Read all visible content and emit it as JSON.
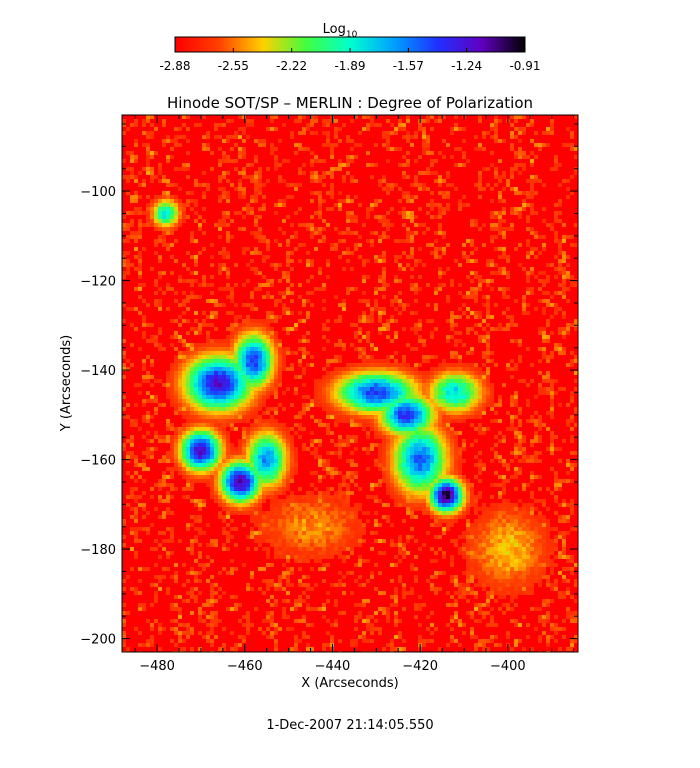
{
  "colorbar": {
    "label_main": "Log",
    "label_sub": "10",
    "ticks": [
      "-2.88",
      "-2.55",
      "-2.22",
      "-1.89",
      "-1.57",
      "-1.24",
      "-0.91"
    ],
    "range": [
      -2.88,
      -0.91
    ],
    "stops": [
      "#ff0000",
      "#ff4000",
      "#ffd000",
      "#40ff40",
      "#00ffd0",
      "#00a0ff",
      "#2030ff",
      "#6000c0",
      "#000000"
    ]
  },
  "chart_data": {
    "type": "heatmap",
    "title": "Hinode SOT/SP – MERLIN : Degree of Polarization",
    "xlabel": "X (Arcseconds)",
    "ylabel": "Y (Arcseconds)",
    "xlim": [
      -488,
      -384
    ],
    "ylim": [
      -203,
      -83
    ],
    "xticks": [
      -480,
      -460,
      -440,
      -420,
      -400
    ],
    "yticks": [
      -100,
      -120,
      -140,
      -160,
      -180,
      -200
    ],
    "xtick_labels": [
      "−480",
      "−460",
      "−440",
      "−420",
      "−400"
    ],
    "ytick_labels": [
      "−100",
      "−120",
      "−140",
      "−160",
      "−180",
      "−200"
    ],
    "value_scale": "log10",
    "value_range": [
      -2.88,
      -0.91
    ],
    "background_level": -2.8,
    "features": [
      {
        "x": -466,
        "y": -143,
        "sx": 5,
        "sy": 4,
        "peak": -1.2
      },
      {
        "x": -458,
        "y": -138,
        "sx": 3,
        "sy": 4,
        "peak": -1.4
      },
      {
        "x": -470,
        "y": -158,
        "sx": 3,
        "sy": 3,
        "peak": -1.15
      },
      {
        "x": -461,
        "y": -165,
        "sx": 3,
        "sy": 3,
        "peak": -1.1
      },
      {
        "x": -455,
        "y": -160,
        "sx": 3,
        "sy": 4,
        "peak": -1.6
      },
      {
        "x": -430,
        "y": -145,
        "sx": 6,
        "sy": 3,
        "peak": -1.4
      },
      {
        "x": -423,
        "y": -150,
        "sx": 4,
        "sy": 3,
        "peak": -1.35
      },
      {
        "x": -414,
        "y": -168,
        "sx": 2.5,
        "sy": 2.5,
        "peak": -0.95
      },
      {
        "x": -420,
        "y": -160,
        "sx": 4,
        "sy": 5,
        "peak": -1.5
      },
      {
        "x": -412,
        "y": -145,
        "sx": 4,
        "sy": 3,
        "peak": -1.8
      },
      {
        "x": -478,
        "y": -105,
        "sx": 2,
        "sy": 2,
        "peak": -1.8
      },
      {
        "x": -400,
        "y": -180,
        "sx": 6,
        "sy": 6,
        "peak": -2.4
      },
      {
        "x": -445,
        "y": -175,
        "sx": 8,
        "sy": 5,
        "peak": -2.5
      }
    ]
  },
  "footer": {
    "timestamp": "1-Dec-2007 21:14:05.550"
  }
}
